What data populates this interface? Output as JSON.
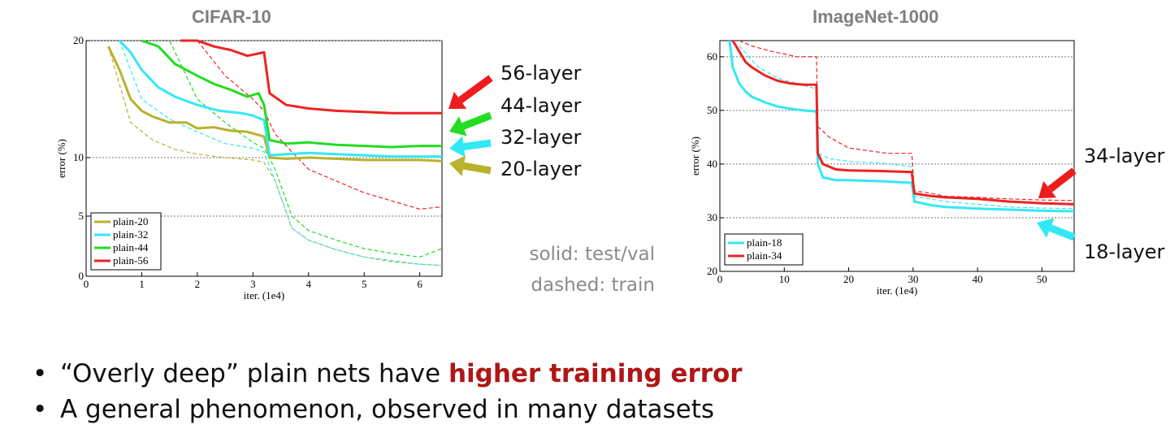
{
  "chart_data": [
    {
      "type": "line",
      "title": "CIFAR-10",
      "xlabel": "iter. (1e4)",
      "ylabel": "error (%)",
      "xlim": [
        0,
        6.4
      ],
      "ylim": [
        0,
        20
      ],
      "xticks": [
        0,
        1,
        2,
        3,
        4,
        5,
        6
      ],
      "yticks": [
        0,
        5,
        10,
        20
      ],
      "y_scale": "custom",
      "grid": "horizontal dashed at 5, 10, 20",
      "legend_position": "bottom-left",
      "series": [
        {
          "name": "plain-20",
          "color": "#b8b22c",
          "test": {
            "x": [
              0.4,
              0.6,
              0.8,
              1.0,
              1.2,
              1.5,
              1.8,
              2.0,
              2.3,
              2.6,
              2.9,
              3.2,
              3.3,
              3.6,
              4.0,
              5.0,
              6.0,
              6.4
            ],
            "y": [
              19.5,
              17.5,
              15,
              14,
              13.5,
              13,
              13,
              12.5,
              12.6,
              12.3,
              12.2,
              11.8,
              10.0,
              9.9,
              10.0,
              9.8,
              9.8,
              9.7
            ]
          },
          "train": {
            "x": [
              0.4,
              0.8,
              1.2,
              1.6,
              2.0,
              2.5,
              3.0,
              3.2,
              3.4,
              3.7,
              4.0,
              4.5,
              5.0,
              5.5,
              6.0,
              6.4
            ],
            "y": [
              19.5,
              13,
              11.5,
              10.7,
              10.3,
              10.0,
              9.8,
              9.6,
              8.0,
              4.0,
              3.0,
              2.2,
              1.6,
              1.2,
              1.0,
              0.9
            ]
          }
        },
        {
          "name": "plain-32",
          "color": "#33e8f5",
          "test": {
            "x": [
              0.6,
              0.8,
              1.0,
              1.3,
              1.6,
              2.0,
              2.4,
              2.8,
              3.0,
              3.2,
              3.3,
              3.6,
              4.0,
              4.5,
              5.0,
              5.5,
              6.0,
              6.4
            ],
            "y": [
              20,
              19,
              17.5,
              16,
              15.2,
              14.5,
              14,
              13.8,
              13.6,
              13.2,
              10.2,
              10.3,
              10.4,
              10.3,
              10.2,
              10.1,
              10.1,
              10.1
            ]
          },
          "train": {
            "x": [
              0.6,
              1.0,
              1.5,
              2.0,
              2.5,
              3.0,
              3.2,
              3.4,
              3.7,
              4.0,
              4.5,
              5.0,
              5.5,
              6.0,
              6.4
            ],
            "y": [
              20,
              15,
              13.3,
              12.2,
              11.2,
              10.8,
              10.5,
              8.0,
              4.0,
              3.0,
              2.2,
              1.6,
              1.3,
              1.0,
              0.9
            ]
          }
        },
        {
          "name": "plain-44",
          "color": "#22dd22",
          "test": {
            "x": [
              1.0,
              1.3,
              1.6,
              2.0,
              2.3,
              2.6,
              2.9,
              3.1,
              3.2,
              3.3,
              3.6,
              4.0,
              4.5,
              5.0,
              5.5,
              6.0,
              6.4
            ],
            "y": [
              20,
              19.5,
              18,
              17,
              16.3,
              15.8,
              15.2,
              15.5,
              14.5,
              11.5,
              11.2,
              11.3,
              11.1,
              11.0,
              10.9,
              11.0,
              11.0
            ]
          },
          "train": {
            "x": [
              1.5,
              2.0,
              2.5,
              3.0,
              3.2,
              3.4,
              3.7,
              4.0,
              4.5,
              5.0,
              5.5,
              6.0,
              6.4
            ],
            "y": [
              20,
              15,
              13,
              11.3,
              10.8,
              9.0,
              5.0,
              3.8,
              3.0,
              2.3,
              1.9,
              1.6,
              2.3
            ]
          }
        },
        {
          "name": "plain-56",
          "color": "#ee2222",
          "test": {
            "x": [
              1.7,
              2.0,
              2.3,
              2.6,
              2.9,
              3.2,
              3.3,
              3.6,
              4.0,
              4.5,
              5.0,
              5.5,
              6.0,
              6.4
            ],
            "y": [
              20,
              20,
              19.5,
              19.2,
              18.7,
              19.0,
              15.5,
              14.5,
              14.2,
              14.0,
              13.9,
              13.8,
              13.8,
              13.8
            ]
          },
          "train": {
            "x": [
              2.0,
              2.5,
              3.0,
              3.2,
              3.4,
              3.7,
              4.0,
              4.5,
              5.0,
              5.5,
              6.0,
              6.4
            ],
            "y": [
              20,
              17,
              15,
              14,
              12,
              10.5,
              9.0,
              8.0,
              7.0,
              6.3,
              5.6,
              5.8
            ]
          }
        }
      ]
    },
    {
      "type": "line",
      "title": "ImageNet-1000",
      "xlabel": "iter. (1e4)",
      "ylabel": "error (%)",
      "xlim": [
        0,
        55
      ],
      "ylim": [
        20,
        63
      ],
      "xticks": [
        0,
        10,
        20,
        30,
        40,
        50
      ],
      "yticks": [
        20,
        30,
        40,
        50,
        60
      ],
      "grid": "horizontal dashed at 30, 40, 50, 60",
      "legend_position": "bottom-left",
      "series": [
        {
          "name": "plain-18",
          "color": "#33e8f5",
          "test": {
            "x": [
              1.5,
              2,
              3,
              4,
              5,
              7,
              9,
              11,
              13,
              15,
              15.2,
              16,
              18,
              20,
              25,
              29.8,
              30.2,
              33,
              35,
              40,
              45,
              50,
              55
            ],
            "y": [
              63,
              58,
              55,
              53.5,
              52.5,
              51.5,
              50.7,
              50.3,
              50,
              49.8,
              40,
              37.5,
              37,
              37,
              36.8,
              36.5,
              33,
              32.3,
              32,
              31.7,
              31.5,
              31.3,
              31.2
            ]
          },
          "train": {
            "x": [
              3,
              6,
              9,
              12,
              15,
              15.2,
              17,
              20,
              25,
              29.8,
              30.2,
              35,
              40,
              45,
              50,
              55
            ],
            "y": [
              62,
              58,
              56,
              55,
              54,
              42,
              41,
              40.5,
              40.2,
              39.5,
              34,
              33,
              32.5,
              32,
              31.8,
              31.7
            ]
          }
        },
        {
          "name": "plain-34",
          "color": "#ee2222",
          "test": {
            "x": [
              2,
              3,
              4,
              5,
              7,
              9,
              11,
              13,
              15,
              15.2,
              16,
              18,
              20,
              25,
              29.8,
              30.2,
              33,
              35,
              40,
              45,
              50,
              55
            ],
            "y": [
              63,
              61,
              59,
              58,
              56.5,
              55.5,
              55,
              54.8,
              54.8,
              42,
              40,
              39,
              38.8,
              38.7,
              38.5,
              34.5,
              34,
              33.8,
              33.5,
              33,
              32.7,
              32.5
            ]
          },
          "train": {
            "x": [
              3,
              5,
              8,
              10,
              12,
              15,
              15.2,
              17,
              20,
              23,
              26,
              29.8,
              30.2,
              33,
              35,
              40,
              45,
              50,
              55
            ],
            "y": [
              63,
              62,
              61,
              60.5,
              60,
              60,
              47,
              45,
              43,
              42.5,
              42,
              42,
              35,
              34.5,
              34,
              33.8,
              33.5,
              33.3,
              33.2
            ]
          }
        }
      ]
    }
  ],
  "annotations": {
    "cifar_layers": [
      {
        "label": "56-layer",
        "color": "#ee1c1c"
      },
      {
        "label": "44-layer",
        "color": "#22dd22"
      },
      {
        "label": "32-layer",
        "color": "#33e8f5"
      },
      {
        "label": "20-layer",
        "color": "#b8b22c"
      }
    ],
    "imagenet_layers": [
      {
        "label": "34-layer",
        "color": "#ee1c1c"
      },
      {
        "label": "18-layer",
        "color": "#33e8f5"
      }
    ],
    "solid_note": "solid: test/val",
    "dashed_note": "dashed: train"
  },
  "bullets": [
    {
      "bullet": "•",
      "prefix": "“Overly deep” plain nets have ",
      "highlight": "higher training error"
    },
    {
      "bullet": "•",
      "prefix": "A general phenomenon, observed in many datasets",
      "highlight": ""
    }
  ]
}
